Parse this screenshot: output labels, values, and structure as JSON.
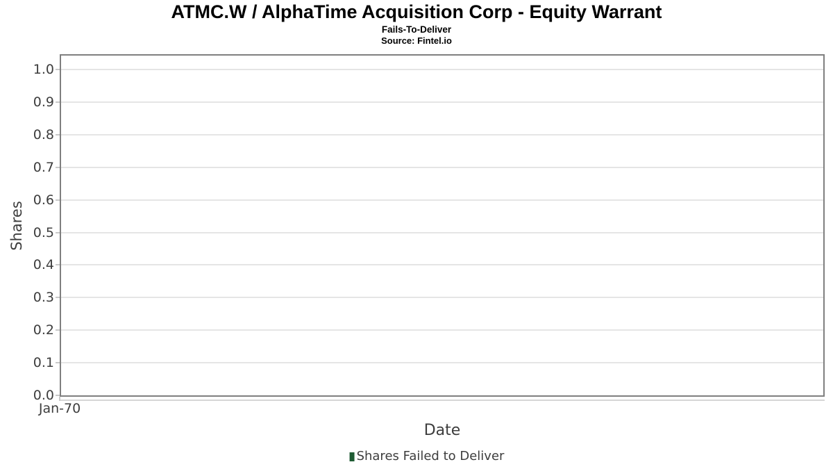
{
  "header": {
    "title": "ATMC.W / AlphaTime Acquisition Corp - Equity Warrant",
    "subtitle": "Fails-To-Deliver",
    "source": "Source: Fintel.io"
  },
  "chart_data": {
    "type": "bar",
    "title": "ATMC.W / AlphaTime Acquisition Corp - Equity Warrant",
    "subtitle": "Fails-To-Deliver",
    "source_note": "Source: Fintel.io",
    "xlabel": "Date",
    "ylabel": "Shares",
    "categories": [],
    "series": [
      {
        "name": "Shares Failed to Deliver",
        "color": "#1e5b33",
        "values": []
      }
    ],
    "x_tick_labels": [
      "Jan-70"
    ],
    "y_ticks": [
      0.0,
      0.1,
      0.2,
      0.3,
      0.4,
      0.5,
      0.6,
      0.7,
      0.8,
      0.9,
      1.0
    ],
    "y_tick_labels": [
      "0.0",
      "0.1",
      "0.2",
      "0.3",
      "0.4",
      "0.5",
      "0.6",
      "0.7",
      "0.8",
      "0.9",
      "1.0"
    ],
    "ylim": [
      0.0,
      1.04
    ],
    "grid": true,
    "legend_position": "bottom"
  },
  "legend": {
    "entries": [
      {
        "label": "Shares Failed to Deliver",
        "marker_color": "#1e5b33"
      }
    ]
  },
  "colors": {
    "plot_border": "#7f7f7f",
    "gridline": "#e5e5e5",
    "tick_mark": "#c9c9c9",
    "axis_text": "#3d3d3d",
    "title_text": "#000000",
    "legend_marker": "#1e5b33",
    "background": "#ffffff"
  }
}
